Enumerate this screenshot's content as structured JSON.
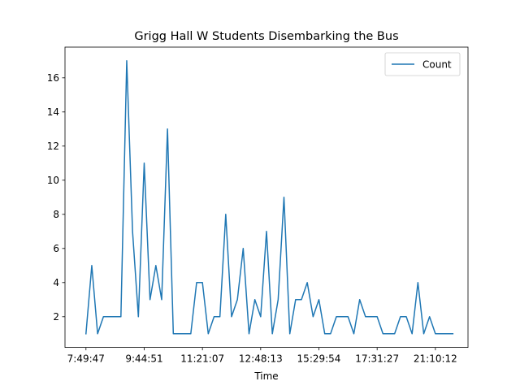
{
  "chart_data": {
    "type": "line",
    "title": "Grigg Hall W Students Disembarking the Bus",
    "xlabel": "Time",
    "ylabel": "",
    "ylim": [
      0.2,
      17.8
    ],
    "xlim": [
      -3.6,
      65.6
    ],
    "yticks": [
      2,
      4,
      6,
      8,
      10,
      12,
      14,
      16
    ],
    "xticks": [
      {
        "pos": 0,
        "label": "7:49:47"
      },
      {
        "pos": 10,
        "label": "9:44:51"
      },
      {
        "pos": 20,
        "label": "11:21:07"
      },
      {
        "pos": 30,
        "label": "12:48:13"
      },
      {
        "pos": 40,
        "label": "15:29:54"
      },
      {
        "pos": 50,
        "label": "17:31:27"
      },
      {
        "pos": 60,
        "label": "21:10:12"
      }
    ],
    "legend": {
      "position": "upper right",
      "entries": [
        "Count"
      ]
    },
    "series": [
      {
        "name": "Count",
        "color": "#1f77b4",
        "values": [
          1,
          5,
          1,
          2,
          2,
          2,
          2,
          17,
          7,
          2,
          11,
          3,
          5,
          3,
          13,
          1,
          1,
          1,
          1,
          4,
          4,
          1,
          2,
          2,
          8,
          2,
          3,
          6,
          1,
          3,
          2,
          7,
          1,
          3,
          9,
          1,
          3,
          3,
          4,
          2,
          3,
          1,
          1,
          2,
          2,
          2,
          1,
          3,
          2,
          2,
          2,
          1,
          1,
          1,
          2,
          2,
          1,
          4,
          1,
          2,
          1,
          1,
          1,
          1
        ]
      }
    ]
  }
}
